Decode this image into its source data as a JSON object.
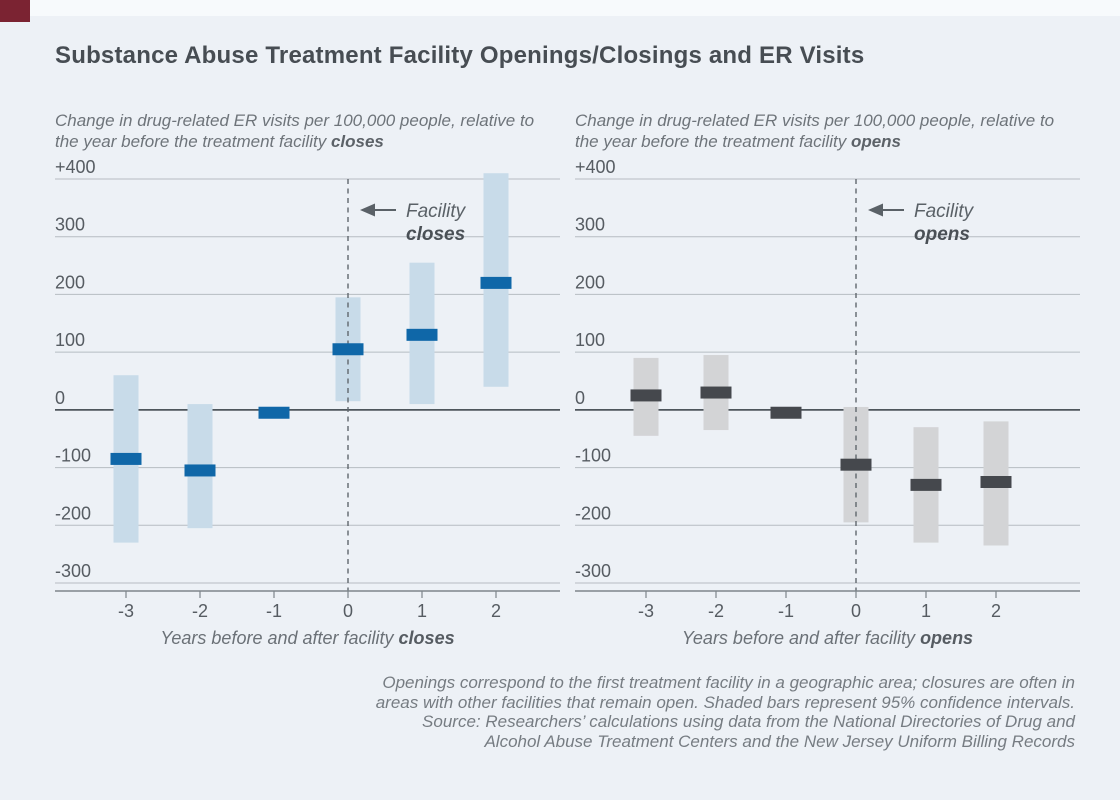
{
  "page": {
    "title": "Substance Abuse Treatment Facility Openings/Closings and ER Visits",
    "background": "#edf1f6",
    "top_strip_color": "#f7fafc",
    "brand_color": "#7b2332"
  },
  "chart_data": [
    {
      "type": "bar",
      "panel": "facility-closes",
      "subtitle_regular": "Change in drug-related ER visits per 100,000 people, relative to the year before the treatment facility",
      "subtitle_bold": "closes",
      "xlabel_regular": "Years before and after facility",
      "xlabel_bold": "closes",
      "annotation": {
        "line1": "Facility",
        "line2": "closes"
      },
      "categories": [
        "-3",
        "-2",
        "-1",
        "0",
        "1",
        "2"
      ],
      "series": [
        {
          "name": "point_estimate",
          "values": [
            -85,
            -105,
            -5,
            105,
            130,
            220
          ]
        },
        {
          "name": "ci_low",
          "values": [
            -230,
            -205,
            -15,
            15,
            10,
            40
          ]
        },
        {
          "name": "ci_high",
          "values": [
            60,
            10,
            5,
            195,
            255,
            410
          ]
        }
      ],
      "event_at": "0",
      "ylim": [
        -300,
        400
      ],
      "ytick_step": 100,
      "ytick_labels": [
        "+400",
        "300",
        "200",
        "100",
        "0",
        "-100",
        "-200",
        "-300"
      ],
      "grid": true,
      "legend": "none",
      "bar_color": "#c8dbe9",
      "point_color": "#0f67a8"
    },
    {
      "type": "bar",
      "panel": "facility-opens",
      "subtitle_regular": "Change in drug-related ER visits per 100,000 people, relative to the year before the treatment facility",
      "subtitle_bold": "opens",
      "xlabel_regular": "Years before and after facility",
      "xlabel_bold": "opens",
      "annotation": {
        "line1": "Facility",
        "line2": "opens"
      },
      "categories": [
        "-3",
        "-2",
        "-1",
        "0",
        "1",
        "2"
      ],
      "series": [
        {
          "name": "point_estimate",
          "values": [
            25,
            30,
            -5,
            -95,
            -130,
            -125
          ]
        },
        {
          "name": "ci_low",
          "values": [
            -45,
            -35,
            -15,
            -195,
            -230,
            -235
          ]
        },
        {
          "name": "ci_high",
          "values": [
            90,
            95,
            5,
            5,
            -30,
            -20
          ]
        }
      ],
      "event_at": "0",
      "ylim": [
        -300,
        400
      ],
      "ytick_step": 100,
      "ytick_labels": [
        "+400",
        "300",
        "200",
        "100",
        "0",
        "-100",
        "-200",
        "-300"
      ],
      "grid": true,
      "legend": "none",
      "bar_color": "#d3d4d6",
      "point_color": "#45484d"
    }
  ],
  "footnote": {
    "lines": [
      "Openings correspond to the first treatment facility in a geographic area; closures are often in",
      "areas with other facilities that remain open. Shaded bars represent 95% confidence intervals.",
      "Source: Researchers’ calculations using data from the National Directories of Drug and",
      "Alcohol Abuse Treatment Centers and the New Jersey Uniform Billing Records"
    ]
  },
  "colors": {
    "gridline": "#b6bcc2",
    "zero_line": "#4e565c",
    "axis_line": "#7e858b",
    "dashed_event_line": "#60676d",
    "tick_label": "#565c62",
    "annotation_text": "#5a6167",
    "annotation_bold": "#4a5056"
  }
}
